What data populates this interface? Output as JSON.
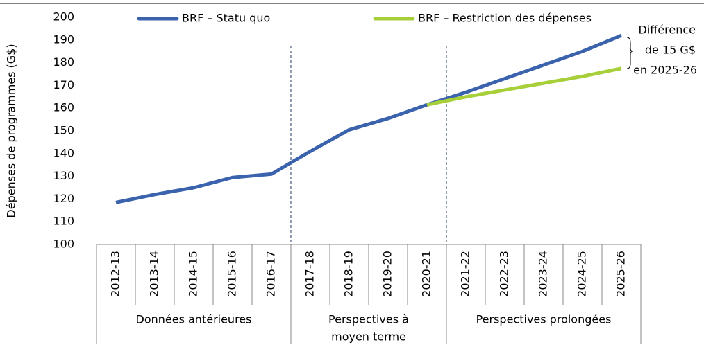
{
  "chart_data": {
    "type": "line",
    "y_axis_label": "Dépenses de programmes (G$)",
    "categories": [
      "2012-13",
      "2013-14",
      "2014-15",
      "2015-16",
      "2016-17",
      "2017-18",
      "2018-19",
      "2019-20",
      "2020-21",
      "2021-22",
      "2022-23",
      "2023-24",
      "2024-25",
      "2025-26"
    ],
    "series": [
      {
        "name": "BRF – Statu quo",
        "color": "#3b63ad",
        "values": [
          118.5,
          122,
          125,
          129.5,
          131,
          141,
          150.5,
          155.5,
          161.5,
          167,
          173,
          179,
          185,
          192
        ]
      },
      {
        "name": "BRF – Restriction des dépenses",
        "color": "#a6cf3a",
        "values": [
          null,
          null,
          null,
          null,
          null,
          null,
          null,
          null,
          161.5,
          165,
          168,
          171,
          174,
          177.5
        ]
      }
    ],
    "groups": [
      {
        "lines": [
          "Données antérieures"
        ],
        "span": 5
      },
      {
        "lines": [
          "Perspectives à",
          "moyen terme"
        ],
        "span": 4
      },
      {
        "lines": [
          "Perspectives prolongées"
        ],
        "span": 5
      }
    ],
    "annotation": [
      "Différence",
      "de 15 G$",
      "en 2025-26"
    ],
    "ylim": [
      100,
      200
    ],
    "yticks": [
      100,
      110,
      120,
      130,
      140,
      150,
      160,
      170,
      180,
      190,
      200
    ]
  }
}
